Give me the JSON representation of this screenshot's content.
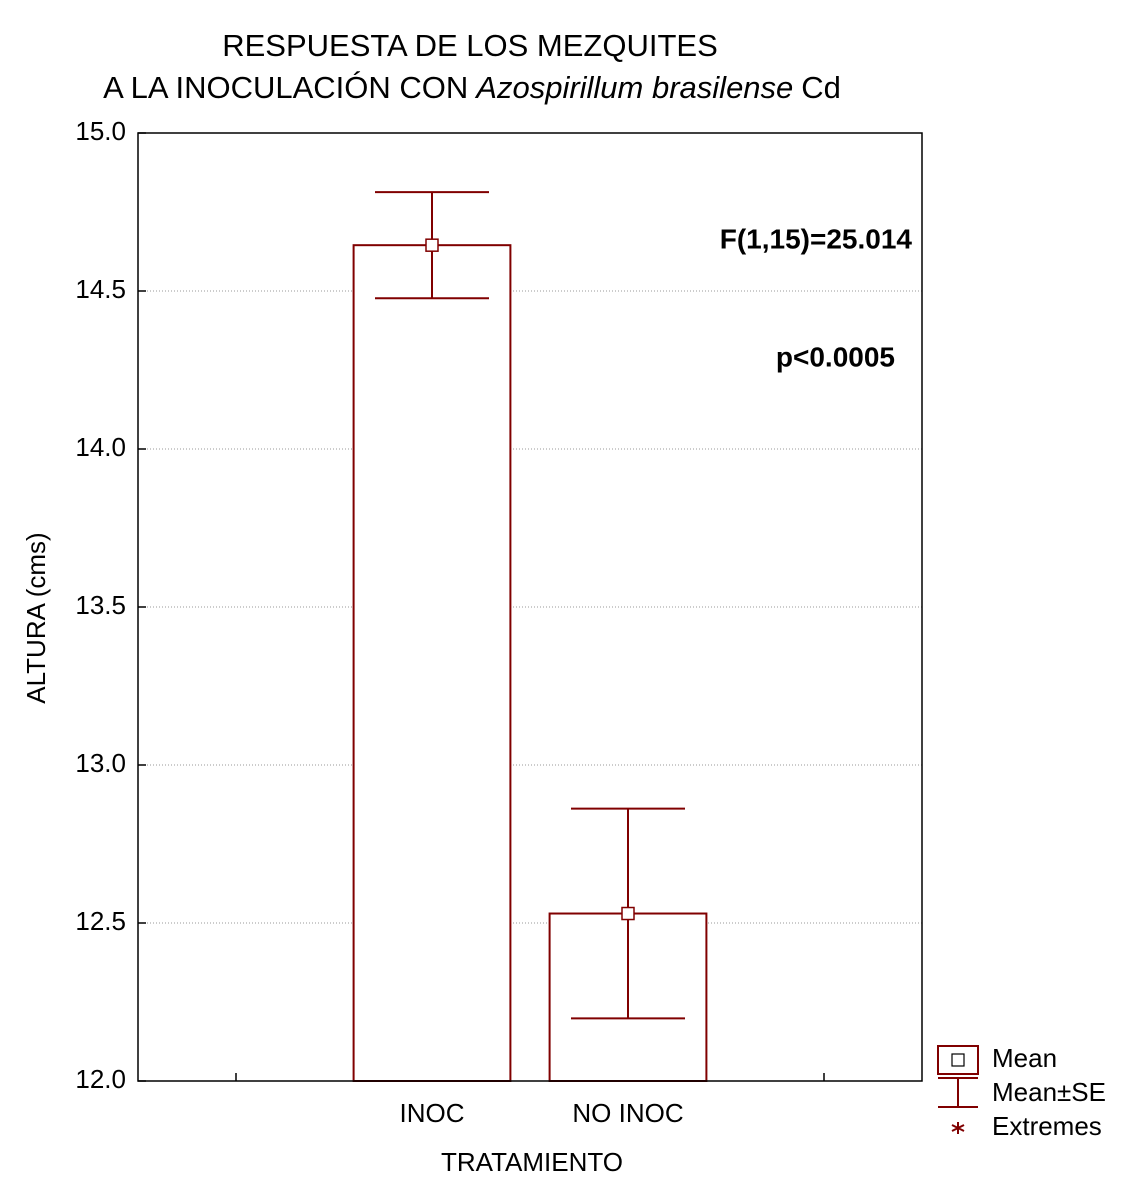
{
  "chart_data": {
    "type": "bar",
    "title": [
      "RESPUESTA DE LOS MEZQUITES",
      [
        "A LA INOCULACIÓN CON",
        "Azospirillum brasilense",
        "Cd"
      ]
    ],
    "x_label": "TRATAMIENTO",
    "y_label": "ALTURA (cms)",
    "categories": [
      null,
      "INOC",
      "NO INOC",
      null
    ],
    "values": [
      null,
      14.645,
      12.53,
      null
    ],
    "errors": [
      null,
      0.168,
      0.332,
      null
    ],
    "color": "#800000",
    "ylim": [
      12,
      15
    ],
    "yticks": [
      {
        "value": 12,
        "label": "12.0"
      },
      12.5,
      {
        "value": 13,
        "label": "13.0"
      },
      13.5,
      {
        "value": 14,
        "label": "14.0"
      },
      14.5,
      {
        "value": 15,
        "label": "15.0"
      }
    ],
    "grid": true,
    "annotations": [
      "F(1,15)=25.014",
      "p<0.0005"
    ],
    "legend": {
      "position": "bottom-right",
      "entries": [
        "Mean",
        "Mean±SE",
        "Extremes"
      ]
    }
  }
}
